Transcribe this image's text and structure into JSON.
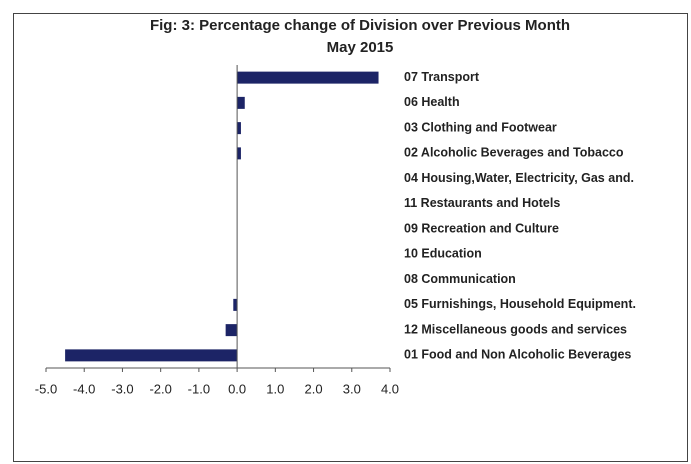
{
  "chart_data": {
    "type": "barh",
    "title": "Fig: 3: Percentage change of Division over Previous Month",
    "subtitle": "May 2015",
    "categories": [
      "07 Transport",
      "06 Health",
      "03 Clothing and Footwear",
      "02 Alcoholic Beverages and Tobacco",
      "04 Housing,Water, Electricity, Gas and.",
      "11 Restaurants and Hotels",
      "09 Recreation and Culture",
      "10 Education",
      "08 Communication",
      "05 Furnishings, Household Equipment.",
      "12 Miscellaneous goods and services",
      "01 Food and Non Alcoholic Beverages"
    ],
    "values": [
      3.7,
      0.2,
      0.1,
      0.1,
      0,
      0,
      0,
      0,
      0,
      -0.1,
      -0.3,
      -4.5
    ],
    "color": "#1c2466",
    "xlim": [
      -5,
      4
    ],
    "xticks": [
      {
        "value": -5,
        "label": "-5.0"
      },
      {
        "value": -4,
        "label": "-4.0"
      },
      {
        "value": -3,
        "label": "-3.0"
      },
      {
        "value": -2,
        "label": "-2.0"
      },
      {
        "value": -1,
        "label": "-1.0"
      },
      {
        "value": 0,
        "label": "0.0"
      },
      {
        "value": 1,
        "label": "1.0"
      },
      {
        "value": 2,
        "label": "2.0"
      },
      {
        "value": 3,
        "label": "3.0"
      },
      {
        "value": 4,
        "label": "4.0"
      }
    ]
  }
}
